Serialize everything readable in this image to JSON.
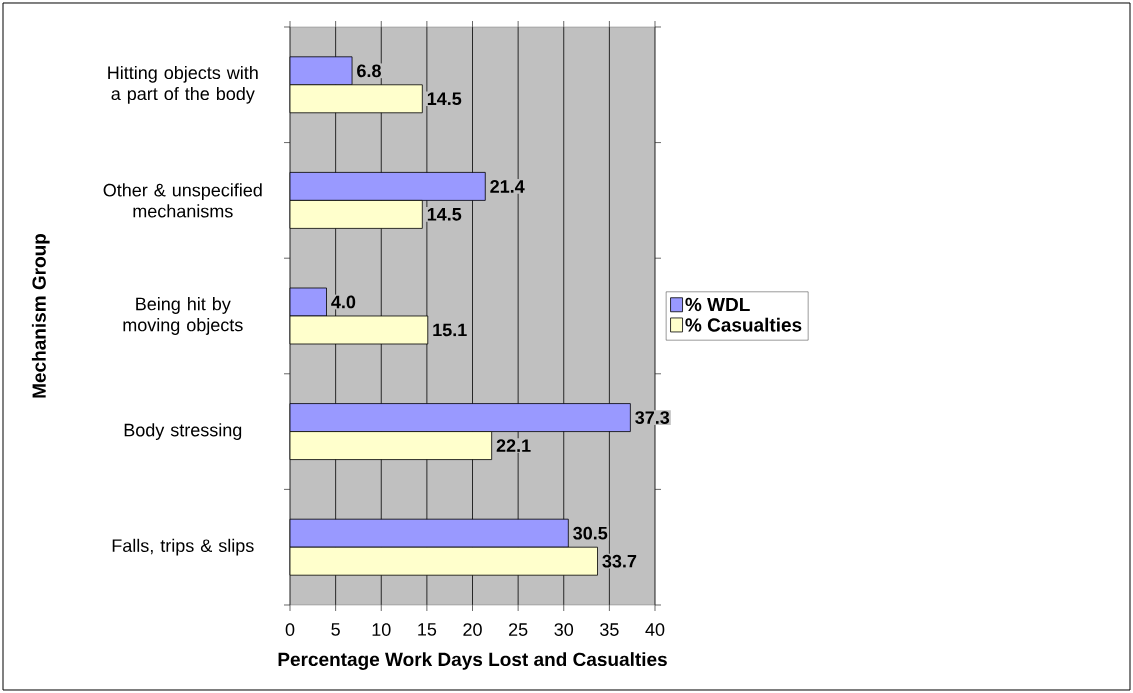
{
  "chart_data": {
    "type": "bar",
    "orientation": "horizontal",
    "xlabel": "Percentage Work Days Lost and Casualties",
    "ylabel": "Mechanism Group",
    "categories": [
      "Hitting objects with a part of the body",
      "Other & unspecified mechanisms",
      "Being hit by moving objects",
      "Body stressing",
      "Falls, trips & slips"
    ],
    "series": [
      {
        "name": "% WDL",
        "color": "#9999ff",
        "values": [
          6.8,
          21.4,
          4.0,
          37.3,
          30.5
        ],
        "value_labels": [
          "6.8",
          "21.4",
          "4.0",
          "37.3",
          "30.5"
        ]
      },
      {
        "name": "% Casualties",
        "color": "#ffffcc",
        "values": [
          14.5,
          14.5,
          15.1,
          22.1,
          33.7
        ],
        "value_labels": [
          "14.5",
          "14.5",
          "15.1",
          "22.1",
          "33.7"
        ]
      }
    ],
    "xlim": [
      0,
      40
    ],
    "xticks": [
      0,
      5,
      10,
      15,
      20,
      25,
      30,
      35,
      40
    ],
    "grid": "x",
    "legend": "right"
  }
}
